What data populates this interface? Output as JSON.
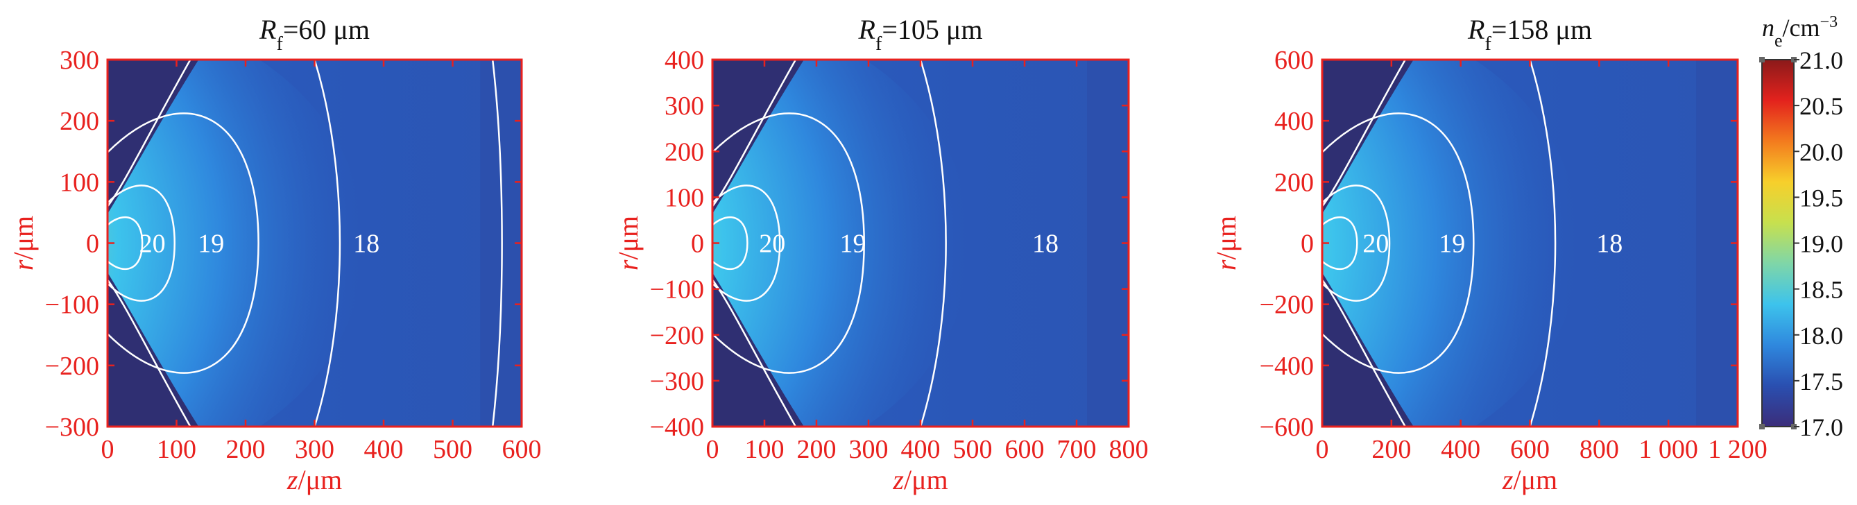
{
  "chart_data": [
    {
      "type": "heatmap",
      "title": "R_f=60 μm",
      "title_parts": {
        "symbol": "R",
        "sub": "f",
        "rest": "=60 μm"
      },
      "xlabel": "z/μm",
      "xlabel_parts": {
        "var": "z",
        "unit": "/μm"
      },
      "ylabel": "r/μm",
      "ylabel_parts": {
        "var": "r",
        "unit": "/μm"
      },
      "xlim": [
        0,
        600
      ],
      "ylim": [
        -300,
        300
      ],
      "x_ticks": [
        "0",
        "100",
        "200",
        "300",
        "400",
        "500",
        "600"
      ],
      "x_tick_values": [
        0,
        100,
        200,
        300,
        400,
        500,
        600
      ],
      "y_ticks": [
        "300",
        "200",
        "100",
        "0",
        "−100",
        "−200",
        "−300"
      ],
      "y_tick_values": [
        300,
        200,
        100,
        0,
        -100,
        -200,
        -300
      ],
      "contour_labels": [
        {
          "text": "20",
          "z": 65,
          "r": 0
        },
        {
          "text": "19",
          "z": 150,
          "r": 0
        },
        {
          "text": "18",
          "z": 375,
          "r": 0
        }
      ]
    },
    {
      "type": "heatmap",
      "title": "R_f=105 μm",
      "title_parts": {
        "symbol": "R",
        "sub": "f",
        "rest": "=105 μm"
      },
      "xlabel": "z/μm",
      "xlabel_parts": {
        "var": "z",
        "unit": "/μm"
      },
      "ylabel": "r/μm",
      "ylabel_parts": {
        "var": "r",
        "unit": "/μm"
      },
      "xlim": [
        0,
        800
      ],
      "ylim": [
        -400,
        400
      ],
      "x_ticks": [
        "0",
        "100",
        "200",
        "300",
        "400",
        "500",
        "600",
        "700",
        "800"
      ],
      "x_tick_values": [
        0,
        100,
        200,
        300,
        400,
        500,
        600,
        700,
        800
      ],
      "y_ticks": [
        "400",
        "300",
        "200",
        "100",
        "0",
        "−100",
        "−200",
        "−300",
        "−400"
      ],
      "y_tick_values": [
        400,
        300,
        200,
        100,
        0,
        -100,
        -200,
        -300,
        -400
      ],
      "contour_labels": [
        {
          "text": "20",
          "z": 115,
          "r": 0
        },
        {
          "text": "19",
          "z": 270,
          "r": 0
        },
        {
          "text": "18",
          "z": 640,
          "r": 0
        }
      ]
    },
    {
      "type": "heatmap",
      "title": "R_f=158 μm",
      "title_parts": {
        "symbol": "R",
        "sub": "f",
        "rest": "=158 μm"
      },
      "xlabel": "z/μm",
      "xlabel_parts": {
        "var": "z",
        "unit": "/μm"
      },
      "ylabel": "r/μm",
      "ylabel_parts": {
        "var": "r",
        "unit": "/μm"
      },
      "xlim": [
        0,
        1200
      ],
      "ylim": [
        -600,
        600
      ],
      "x_ticks": [
        "0",
        "200",
        "400",
        "600",
        "800",
        "1 000",
        "1 200"
      ],
      "x_tick_values": [
        0,
        200,
        400,
        600,
        800,
        1000,
        1200
      ],
      "y_ticks": [
        "600",
        "400",
        "200",
        "0",
        "−200",
        "−400",
        "−600"
      ],
      "y_tick_values": [
        600,
        400,
        200,
        0,
        -200,
        -400,
        -600
      ],
      "contour_labels": [
        {
          "text": "20",
          "z": 155,
          "r": 0
        },
        {
          "text": "19",
          "z": 375,
          "r": 0
        },
        {
          "text": "18",
          "z": 830,
          "r": 0
        }
      ]
    }
  ],
  "colorbar": {
    "title": "n_e/cm^-3",
    "title_parts": {
      "var": "n",
      "sub": "e",
      "unit": "/cm",
      "sup": "−3"
    },
    "range": [
      17.0,
      21.0
    ],
    "ticks": [
      "21.0",
      "20.5",
      "20.0",
      "19.5",
      "19.0",
      "18.5",
      "18.0",
      "17.5",
      "17.0"
    ],
    "tick_values": [
      21.0,
      20.5,
      20.0,
      19.5,
      19.0,
      18.5,
      18.0,
      17.5,
      17.0
    ],
    "colors": [
      "#3b2d7a",
      "#2a4fb0",
      "#2f88de",
      "#3dc3ec",
      "#7fd6a8",
      "#c7e04e",
      "#f7cf2b",
      "#f37b1e",
      "#e3221d",
      "#8b1a1a"
    ]
  }
}
